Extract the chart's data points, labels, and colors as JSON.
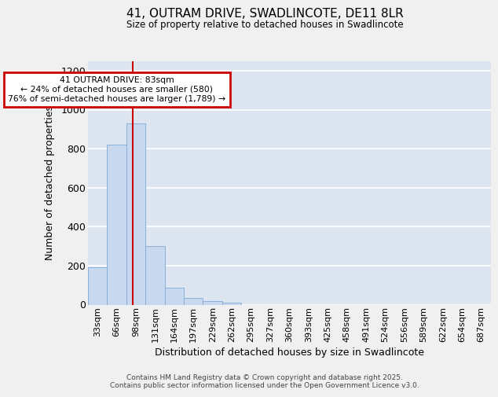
{
  "title_line1": "41, OUTRAM DRIVE, SWADLINCOTE, DE11 8LR",
  "title_line2": "Size of property relative to detached houses in Swadlincote",
  "xlabel": "Distribution of detached houses by size in Swadlincote",
  "ylabel": "Number of detached properties",
  "categories": [
    "33sqm",
    "66sqm",
    "98sqm",
    "131sqm",
    "164sqm",
    "197sqm",
    "229sqm",
    "262sqm",
    "295sqm",
    "327sqm",
    "360sqm",
    "393sqm",
    "425sqm",
    "458sqm",
    "491sqm",
    "524sqm",
    "556sqm",
    "589sqm",
    "622sqm",
    "654sqm",
    "687sqm"
  ],
  "values": [
    190,
    820,
    930,
    300,
    85,
    35,
    20,
    10,
    0,
    0,
    0,
    0,
    0,
    0,
    0,
    0,
    0,
    0,
    0,
    0,
    0
  ],
  "bar_color": "#c8d8ee",
  "bar_edge_color": "#8ab0d8",
  "vline_x": 1.82,
  "vline_color": "#cc0000",
  "annotation_title": "41 OUTRAM DRIVE: 83sqm",
  "annotation_line1": "← 24% of detached houses are smaller (580)",
  "annotation_line2": "76% of semi-detached houses are larger (1,789) →",
  "annotation_box_color": "#cc0000",
  "ylim": [
    0,
    1250
  ],
  "yticks": [
    0,
    200,
    400,
    600,
    800,
    1000,
    1200
  ],
  "background_color": "#dde6f0",
  "grid_color": "#ffffff",
  "fig_background": "#f0f0f0",
  "footer_line1": "Contains HM Land Registry data © Crown copyright and database right 2025.",
  "footer_line2": "Contains public sector information licensed under the Open Government Licence v3.0."
}
